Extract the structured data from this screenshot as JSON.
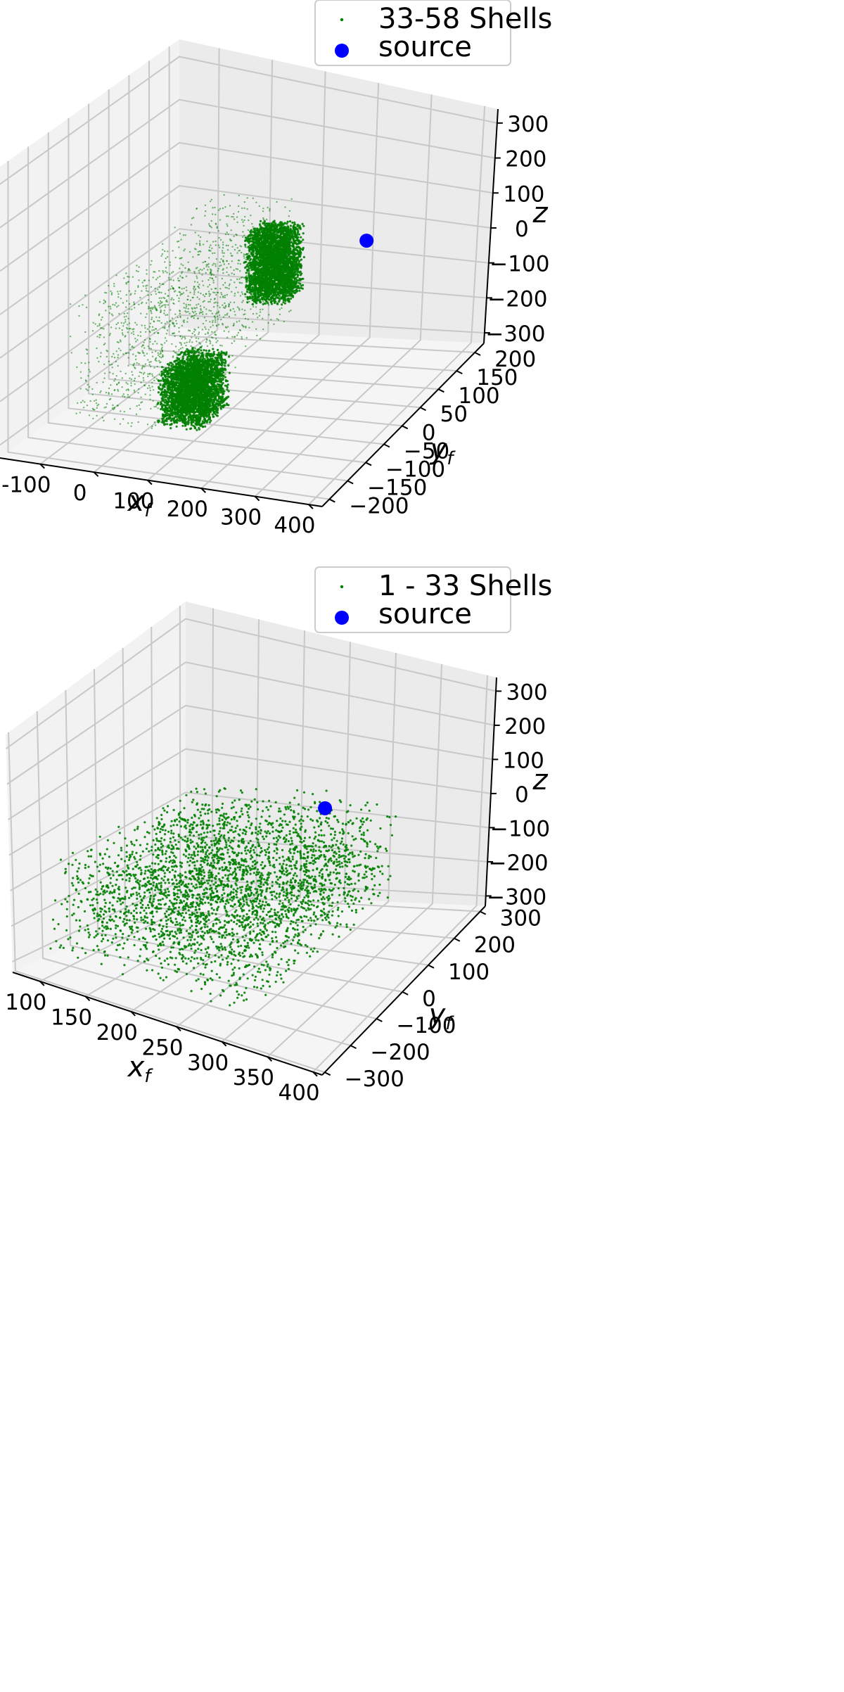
{
  "chart_data": [
    {
      "type": "scatter3d",
      "title": "",
      "xlabel": "x_f",
      "ylabel": "y_f",
      "zlabel": "z",
      "xlim": [
        -175,
        425
      ],
      "ylim": [
        -220,
        225
      ],
      "zlim": [
        -330,
        340
      ],
      "xticks": [
        -100,
        0,
        100,
        200,
        300,
        400
      ],
      "yticks": [
        -200,
        -150,
        -100,
        -50,
        0,
        50,
        100,
        150,
        200
      ],
      "zticks": [
        -300,
        -200,
        -100,
        0,
        100,
        200,
        300
      ],
      "grid": true,
      "legend_position": "top-right",
      "series": [
        {
          "name": "33-58 Shells",
          "marker": "point",
          "color": "#008000",
          "description_regions": [
            {
              "region": "front wedge",
              "x": [
                60,
                140
              ],
              "y": [
                -140,
                -60
              ],
              "z": [
                -260,
                -100
              ]
            },
            {
              "region": "back slab",
              "x": [
                10,
                90
              ],
              "y": [
                150,
                200
              ],
              "z": [
                -180,
                20
              ]
            },
            {
              "region": "sparse arc",
              "x": [
                -80,
                80
              ],
              "y": [
                -180,
                200
              ],
              "z": [
                -250,
                100
              ]
            }
          ]
        },
        {
          "name": "source",
          "marker": "circle",
          "color": "#0000ff",
          "points": [
            {
              "x": 300,
              "y": 80,
              "z": 100
            }
          ]
        }
      ]
    },
    {
      "type": "scatter3d",
      "title": "",
      "xlabel": "x_f",
      "ylabel": "y_f",
      "zlabel": "z",
      "xlim": [
        70,
        410
      ],
      "ylim": [
        -310,
        320
      ],
      "zlim": [
        -330,
        340
      ],
      "xticks": [
        100,
        150,
        200,
        250,
        300,
        350,
        400
      ],
      "yticks": [
        -300,
        -200,
        -100,
        0,
        100,
        200,
        300
      ],
      "zticks": [
        -300,
        -200,
        -100,
        0,
        100,
        200,
        300
      ],
      "grid": true,
      "legend_position": "top-right",
      "series": [
        {
          "name": "1 - 33 Shells",
          "marker": "point",
          "color": "#008000",
          "description_regions": [
            {
              "region": "curved band",
              "x": [
                90,
                320
              ],
              "y": [
                -250,
                300
              ],
              "z": [
                -280,
                0
              ]
            }
          ]
        },
        {
          "name": "source",
          "marker": "circle",
          "color": "#0000ff",
          "points": [
            {
              "x": 300,
              "y": 80,
              "z": 100
            }
          ]
        }
      ]
    }
  ],
  "colors": {
    "pane_left": "#f2f2f2",
    "pane_back": "#ebebeb",
    "pane_floor": "#f5f5f5",
    "grid": "#c8c8c8",
    "series_green": "#008000",
    "source_blue": "#0000ff"
  }
}
